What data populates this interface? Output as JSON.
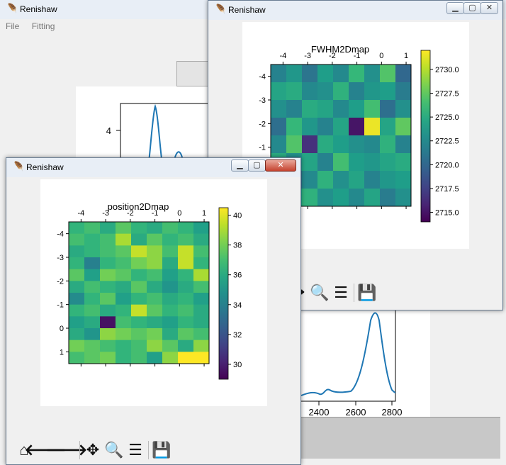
{
  "main_window": {
    "title": "Renishaw",
    "menu": [
      "File",
      "Fitting"
    ],
    "spectrum": {
      "y_tick": "4",
      "x_ticks": [
        "2400",
        "2600",
        "2800"
      ]
    }
  },
  "fwhm_window": {
    "title": "Renishaw",
    "plot_title": "FWHM2Dmap",
    "x_ticks": [
      "-4",
      "-3",
      "-2",
      "-1",
      "0",
      "1"
    ],
    "y_ticks": [
      "-4",
      "-3",
      "-2",
      "-1",
      "0",
      "1"
    ],
    "colorbar_ticks": [
      "2730.0",
      "2727.5",
      "2725.0",
      "2722.5",
      "2720.0",
      "2717.5",
      "2715.0"
    ]
  },
  "position_window": {
    "title": "Renishaw",
    "plot_title": "position2Dmap",
    "x_ticks": [
      "-4",
      "-3",
      "-2",
      "-1",
      "0",
      "1"
    ],
    "y_ticks": [
      "-4",
      "-3",
      "-2",
      "-1",
      "0",
      "1"
    ],
    "colorbar_ticks": [
      "40",
      "38",
      "36",
      "34",
      "32",
      "30"
    ]
  },
  "toolbar_icons": [
    "home-icon",
    "back-arrow-icon",
    "forward-arrow-icon",
    "pan-icon",
    "zoom-icon",
    "configure-icon",
    "save-icon"
  ],
  "chart_data": [
    {
      "type": "heatmap",
      "title": "FWHM2Dmap",
      "x_ticks": [
        -4,
        -3,
        -2,
        -1,
        0,
        1
      ],
      "y_ticks": [
        -4,
        -3,
        -2,
        -1,
        0,
        1
      ],
      "colorbar_range": [
        2714,
        2732
      ],
      "values": [
        [
          2722.0,
          2723.5,
          2721.0,
          2724.0,
          2722.5,
          2726.0,
          2723.0,
          2727.0,
          2720.0
        ],
        [
          2724.5,
          2725.0,
          2722.5,
          2723.0,
          2725.5,
          2722.0,
          2723.5,
          2724.0,
          2721.5
        ],
        [
          2723.0,
          2722.0,
          2725.0,
          2724.5,
          2722.5,
          2724.0,
          2726.5,
          2720.5,
          2723.0
        ],
        [
          2720.5,
          2726.0,
          2723.5,
          2722.0,
          2724.5,
          2715.0,
          2731.5,
          2724.5,
          2727.5
        ],
        [
          2722.5,
          2727.0,
          2716.5,
          2725.0,
          2724.0,
          2723.0,
          2722.5,
          2725.5,
          2722.0
        ],
        [
          2725.0,
          2723.0,
          2724.5,
          2722.0,
          2726.5,
          2724.0,
          2723.5,
          2724.5,
          2725.0
        ],
        [
          2719.0,
          2720.5,
          2722.5,
          2725.5,
          2723.0,
          2724.5,
          2722.0,
          2723.5,
          2724.0
        ],
        [
          2723.5,
          2724.0,
          2725.5,
          2723.0,
          2724.0,
          2722.5,
          2724.5,
          2721.5,
          2723.0
        ]
      ]
    },
    {
      "type": "heatmap",
      "title": "position2Dmap",
      "x_ticks": [
        -4,
        -3,
        -2,
        -1,
        0,
        1
      ],
      "y_ticks": [
        -4,
        -3,
        -2,
        -1,
        0,
        1
      ],
      "colorbar_range": [
        29,
        40.5
      ],
      "values": [
        [
          36.5,
          37.0,
          36.0,
          37.5,
          36.5,
          36.0,
          37.0,
          36.5,
          35.5
        ],
        [
          37.0,
          36.5,
          37.0,
          39.0,
          36.0,
          37.5,
          36.5,
          37.0,
          36.0
        ],
        [
          36.0,
          36.5,
          37.0,
          37.5,
          39.5,
          38.5,
          37.0,
          39.5,
          37.0
        ],
        [
          36.5,
          34.0,
          36.5,
          37.0,
          38.0,
          38.5,
          36.0,
          39.5,
          36.5
        ],
        [
          37.5,
          35.5,
          38.0,
          37.5,
          36.5,
          37.0,
          35.5,
          36.5,
          39.0
        ],
        [
          36.0,
          37.0,
          36.5,
          36.0,
          37.5,
          36.0,
          35.0,
          36.0,
          37.0
        ],
        [
          34.5,
          36.5,
          37.5,
          35.5,
          36.5,
          37.0,
          36.0,
          36.5,
          35.5
        ],
        [
          36.5,
          37.0,
          36.0,
          36.5,
          39.5,
          37.5,
          36.5,
          37.0,
          36.0
        ],
        [
          35.5,
          36.0,
          29.5,
          37.0,
          36.5,
          36.0,
          35.5,
          36.5,
          36.0
        ],
        [
          36.0,
          35.0,
          38.5,
          38.0,
          37.5,
          38.0,
          36.0,
          37.5,
          37.0
        ],
        [
          38.0,
          37.5,
          37.0,
          36.5,
          37.0,
          38.5,
          37.5,
          36.0,
          38.5
        ],
        [
          37.0,
          37.5,
          38.0,
          36.5,
          37.0,
          35.5,
          38.5,
          40.5,
          40.5
        ]
      ]
    },
    {
      "type": "line",
      "x_ticks": [
        2400,
        2600,
        2800
      ],
      "y_tick": 4,
      "series": [
        {
          "x": [
            2340,
            2400,
            2450,
            2480,
            2500,
            2540,
            2580,
            2620,
            2660,
            2690,
            2705,
            2715,
            2725,
            2735,
            2745,
            2760,
            2780,
            2800,
            2820
          ],
          "y": [
            0.3,
            0.35,
            0.5,
            0.6,
            0.45,
            0.4,
            0.45,
            0.5,
            0.8,
            1.8,
            3.2,
            4.3,
            3.5,
            2.3,
            1.5,
            0.8,
            0.5,
            0.4,
            0.35
          ]
        }
      ]
    }
  ]
}
